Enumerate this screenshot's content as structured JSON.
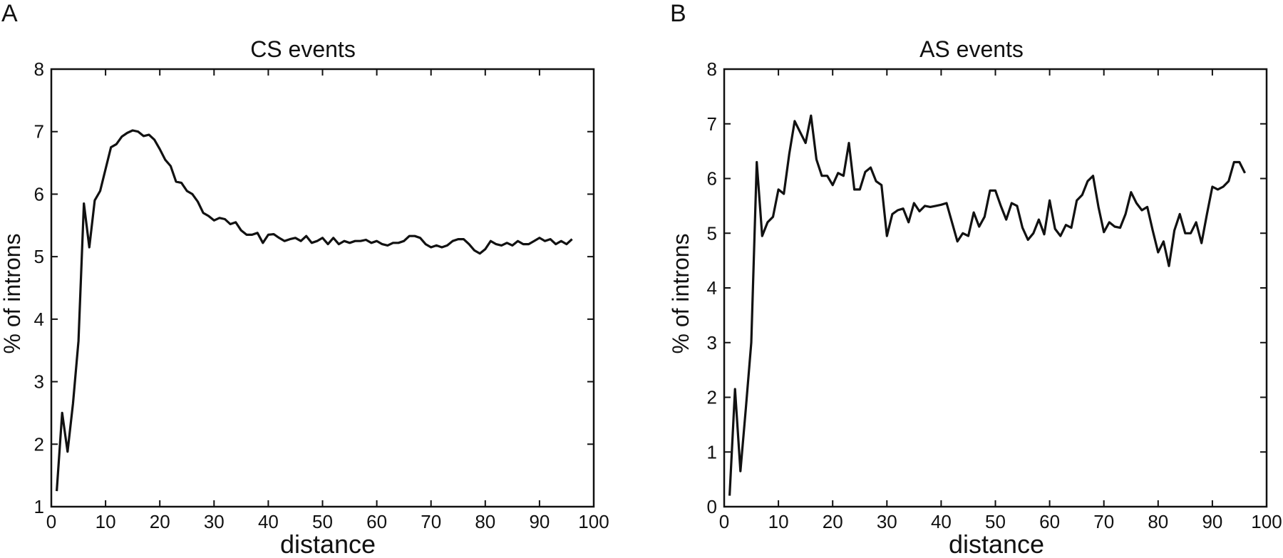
{
  "panels": [
    {
      "label": "A"
    },
    {
      "label": "B"
    }
  ],
  "chart_data": [
    {
      "type": "line",
      "title": "CS events",
      "xlabel": "distance",
      "ylabel": "% of introns",
      "xlim": [
        0,
        100
      ],
      "ylim": [
        1,
        8
      ],
      "xticks": [
        0,
        10,
        20,
        30,
        40,
        50,
        60,
        70,
        80,
        90,
        100
      ],
      "yticks": [
        1,
        2,
        3,
        4,
        5,
        6,
        7,
        8
      ],
      "grid": false,
      "x": [
        1,
        2,
        3,
        4,
        5,
        6,
        7,
        8,
        9,
        10,
        11,
        12,
        13,
        14,
        15,
        16,
        17,
        18,
        19,
        20,
        21,
        22,
        23,
        24,
        25,
        26,
        27,
        28,
        29,
        30,
        31,
        32,
        33,
        34,
        35,
        36,
        37,
        38,
        39,
        40,
        41,
        42,
        43,
        44,
        45,
        46,
        47,
        48,
        49,
        50,
        51,
        52,
        53,
        54,
        55,
        56,
        57,
        58,
        59,
        60,
        61,
        62,
        63,
        64,
        65,
        66,
        67,
        68,
        69,
        70,
        71,
        72,
        73,
        74,
        75,
        76,
        77,
        78,
        79,
        80,
        81,
        82,
        83,
        84,
        85,
        86,
        87,
        88,
        89,
        90,
        91,
        92,
        93,
        94,
        95,
        96
      ],
      "series": [
        {
          "values": [
            1.25,
            2.5,
            1.88,
            2.65,
            3.65,
            5.85,
            5.15,
            5.9,
            6.05,
            6.4,
            6.75,
            6.8,
            6.92,
            6.98,
            7.02,
            7.0,
            6.93,
            6.95,
            6.87,
            6.72,
            6.55,
            6.45,
            6.2,
            6.18,
            6.05,
            6.0,
            5.88,
            5.7,
            5.65,
            5.58,
            5.62,
            5.6,
            5.52,
            5.55,
            5.42,
            5.35,
            5.35,
            5.38,
            5.22,
            5.35,
            5.36,
            5.3,
            5.25,
            5.28,
            5.3,
            5.25,
            5.33,
            5.22,
            5.25,
            5.3,
            5.2,
            5.3,
            5.2,
            5.25,
            5.22,
            5.25,
            5.25,
            5.27,
            5.22,
            5.25,
            5.2,
            5.18,
            5.22,
            5.22,
            5.25,
            5.33,
            5.33,
            5.3,
            5.2,
            5.15,
            5.18,
            5.15,
            5.18,
            5.25,
            5.28,
            5.28,
            5.2,
            5.1,
            5.05,
            5.12,
            5.25,
            5.2,
            5.18,
            5.22,
            5.18,
            5.25,
            5.2,
            5.2,
            5.25,
            5.3,
            5.25,
            5.28,
            5.2,
            5.25,
            5.2,
            5.28
          ]
        }
      ]
    },
    {
      "type": "line",
      "title": "AS events",
      "xlabel": "distance",
      "ylabel": "% of introns",
      "xlim": [
        0,
        100
      ],
      "ylim": [
        0,
        8
      ],
      "xticks": [
        0,
        10,
        20,
        30,
        40,
        50,
        60,
        70,
        80,
        90,
        100
      ],
      "yticks": [
        0,
        1,
        2,
        3,
        4,
        5,
        6,
        7,
        8
      ],
      "grid": false,
      "x": [
        1,
        2,
        3,
        4,
        5,
        6,
        7,
        8,
        9,
        10,
        11,
        12,
        13,
        14,
        15,
        16,
        17,
        18,
        19,
        20,
        21,
        22,
        23,
        24,
        25,
        26,
        27,
        28,
        29,
        30,
        31,
        32,
        33,
        34,
        35,
        36,
        37,
        38,
        39,
        40,
        41,
        42,
        43,
        44,
        45,
        46,
        47,
        48,
        49,
        50,
        51,
        52,
        53,
        54,
        55,
        56,
        57,
        58,
        59,
        60,
        61,
        62,
        63,
        64,
        65,
        66,
        67,
        68,
        69,
        70,
        71,
        72,
        73,
        74,
        75,
        76,
        77,
        78,
        79,
        80,
        81,
        82,
        83,
        84,
        85,
        86,
        87,
        88,
        89,
        90,
        91,
        92,
        93,
        94,
        95,
        96
      ],
      "series": [
        {
          "values": [
            0.2,
            2.15,
            0.65,
            1.8,
            3.0,
            6.3,
            4.95,
            5.2,
            5.3,
            5.8,
            5.72,
            6.45,
            7.05,
            6.85,
            6.65,
            7.15,
            6.35,
            6.05,
            6.05,
            5.88,
            6.1,
            6.05,
            6.65,
            5.8,
            5.8,
            6.12,
            6.2,
            5.95,
            5.88,
            4.95,
            5.35,
            5.42,
            5.45,
            5.2,
            5.55,
            5.4,
            5.5,
            5.48,
            5.5,
            5.52,
            5.55,
            5.2,
            4.85,
            5.0,
            4.95,
            5.38,
            5.12,
            5.3,
            5.78,
            5.78,
            5.5,
            5.25,
            5.55,
            5.5,
            5.1,
            4.88,
            5.0,
            5.25,
            4.98,
            5.6,
            5.08,
            4.95,
            5.15,
            5.1,
            5.6,
            5.7,
            5.95,
            6.05,
            5.48,
            5.02,
            5.2,
            5.12,
            5.1,
            5.35,
            5.75,
            5.55,
            5.42,
            5.48,
            5.05,
            4.65,
            4.85,
            4.4,
            5.05,
            5.35,
            5.0,
            5.0,
            5.2,
            4.82,
            5.35,
            5.85,
            5.8,
            5.85,
            5.95,
            6.3,
            6.3,
            6.1
          ]
        }
      ]
    }
  ]
}
